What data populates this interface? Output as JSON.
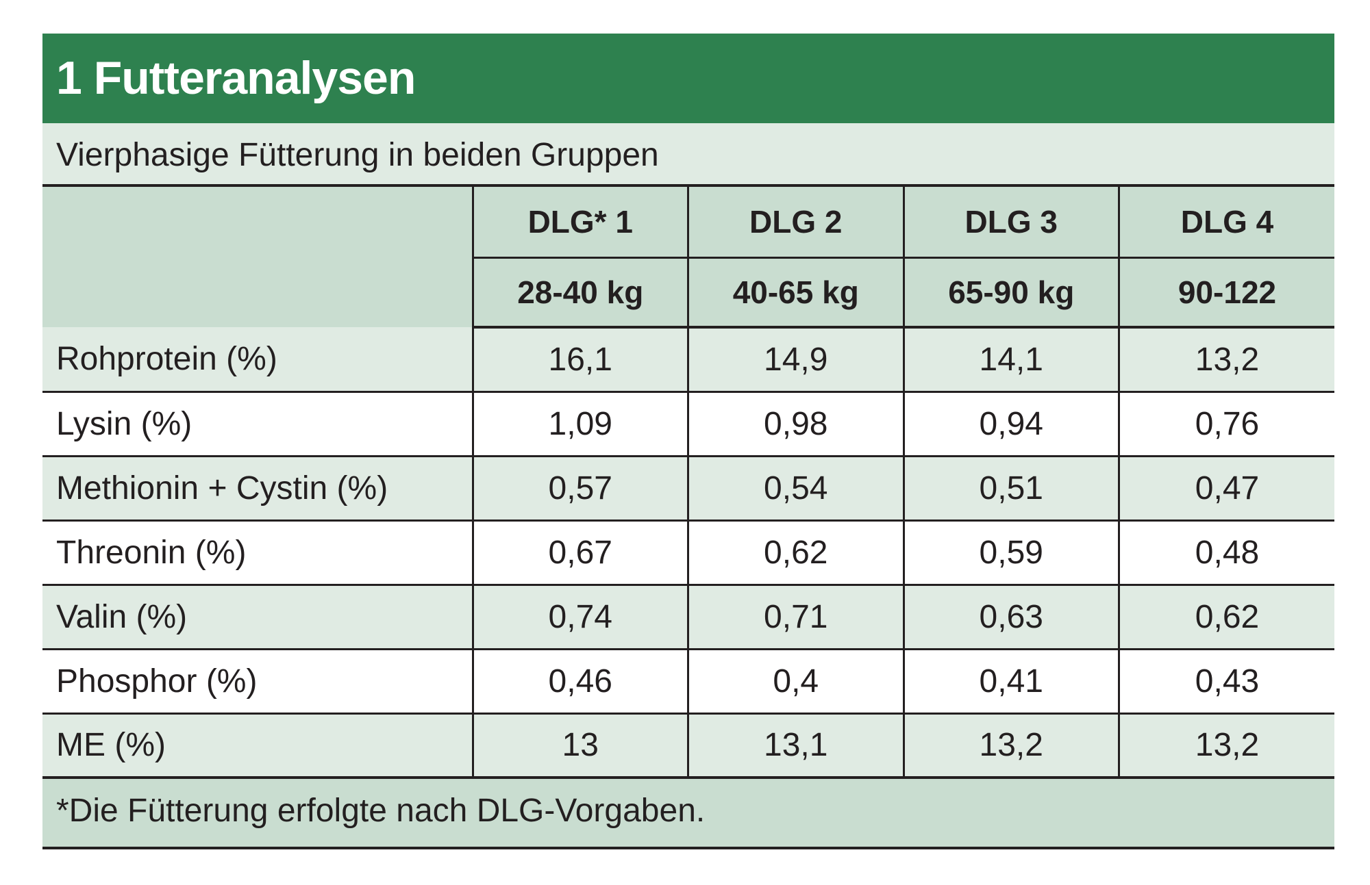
{
  "title": "1 Futteranalysen",
  "subtitle": "Vierphasige Fütterung in beiden Gruppen",
  "columns": [
    {
      "phase": "DLG* 1",
      "weight": "28-40 kg"
    },
    {
      "phase": "DLG 2",
      "weight": "40-65 kg"
    },
    {
      "phase": "DLG 3",
      "weight": "65-90 kg"
    },
    {
      "phase": "DLG 4",
      "weight": "90-122"
    }
  ],
  "rows": [
    {
      "label": "Rohprotein (%)",
      "values": [
        "16,1",
        "14,9",
        "14,1",
        "13,2"
      ]
    },
    {
      "label": "Lysin (%)",
      "values": [
        "1,09",
        "0,98",
        "0,94",
        "0,76"
      ]
    },
    {
      "label": "Methionin + Cystin (%)",
      "values": [
        "0,57",
        "0,54",
        "0,51",
        "0,47"
      ]
    },
    {
      "label": "Threonin (%)",
      "values": [
        "0,67",
        "0,62",
        "0,59",
        "0,48"
      ]
    },
    {
      "label": "Valin (%)",
      "values": [
        "0,74",
        "0,71",
        "0,63",
        "0,62"
      ]
    },
    {
      "label": "Phosphor (%)",
      "values": [
        "0,46",
        "0,4",
        "0,41",
        "0,43"
      ]
    },
    {
      "label": "ME (%)",
      "values": [
        "13",
        "13,1",
        "13,2",
        "13,2"
      ]
    }
  ],
  "footnote": "*Die Fütterung erfolgte nach DLG-Vorgaben.",
  "colors": {
    "title_bg": "#2e814f",
    "light_row": "#e0ebe3",
    "header_bg": "#c9ddd0"
  }
}
